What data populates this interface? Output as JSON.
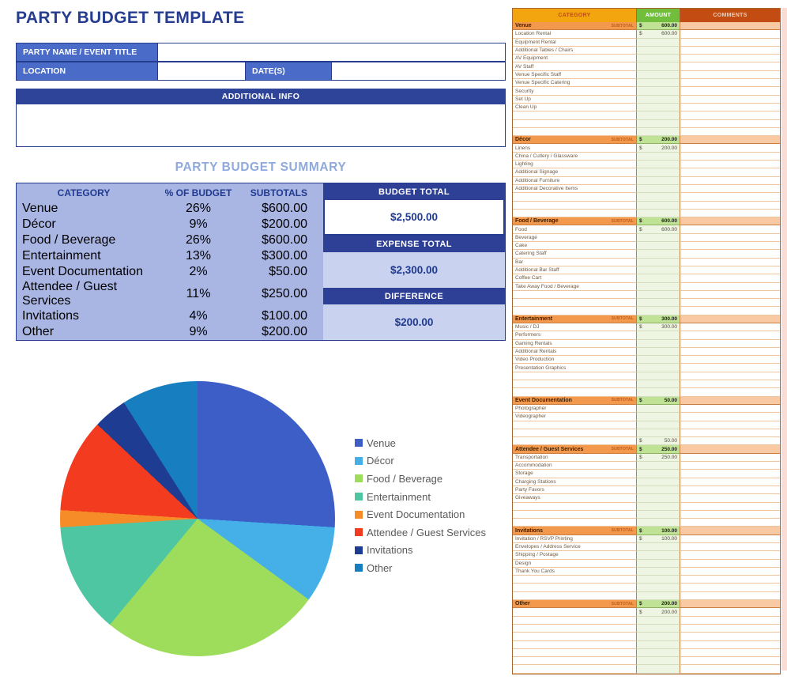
{
  "page": {
    "title": "PARTY BUDGET TEMPLATE"
  },
  "colors": {
    "title_navy": "#263c8f",
    "form_label_blue": "#4a6cc8",
    "info_bar_blue": "#2e4499",
    "summary_title_blue": "#8ea9db",
    "summary_bg": "#a9b5e3",
    "box_header_blue": "#2e3f96",
    "box_light_blue": "#c9d2ef",
    "sheet_category_header": "#f2a50f",
    "sheet_amount_header": "#70be3c",
    "sheet_comments_header": "#c24c12",
    "sheet_section_orange": "#f2994e",
    "sheet_section_amount_green": "#bfe294",
    "sheet_section_comments": "#f8c9a2"
  },
  "form": {
    "fields": [
      {
        "label": "PARTY NAME / EVENT TITLE",
        "value": ""
      },
      {
        "label": "LOCATION",
        "value": ""
      },
      {
        "label": "DATE(S)",
        "value": ""
      }
    ],
    "additional_info": {
      "label": "ADDITIONAL INFO",
      "value": ""
    }
  },
  "summary": {
    "title": "PARTY BUDGET SUMMARY",
    "headers": [
      "CATEGORY",
      "% OF BUDGET",
      "SUBTOTALS"
    ],
    "rows": [
      {
        "category": "Venue",
        "percent": "26%",
        "subtotal": "$600.00"
      },
      {
        "category": "Décor",
        "percent": "9%",
        "subtotal": "$200.00"
      },
      {
        "category": "Food / Beverage",
        "percent": "26%",
        "subtotal": "$600.00"
      },
      {
        "category": "Entertainment",
        "percent": "13%",
        "subtotal": "$300.00"
      },
      {
        "category": "Event Documentation",
        "percent": "2%",
        "subtotal": "$50.00"
      },
      {
        "category": "Attendee / Guest Services",
        "percent": "11%",
        "subtotal": "$250.00"
      },
      {
        "category": "Invitations",
        "percent": "4%",
        "subtotal": "$100.00"
      },
      {
        "category": "Other",
        "percent": "9%",
        "subtotal": "$200.00"
      }
    ],
    "boxes": [
      {
        "label": "BUDGET TOTAL",
        "value": "$2,500.00"
      },
      {
        "label": "EXPENSE TOTAL",
        "value": "$2,300.00"
      },
      {
        "label": "DIFFERENCE",
        "value": "$200.00"
      }
    ]
  },
  "chart_data": {
    "type": "pie",
    "title": "",
    "categories": [
      "Venue",
      "Décor",
      "Food / Beverage",
      "Entertainment",
      "Event Documentation",
      "Attendee / Guest Services",
      "Invitations",
      "Other"
    ],
    "values": [
      26,
      9,
      26,
      13,
      2,
      11,
      4,
      9
    ],
    "unit": "percent of budget",
    "colors": [
      "#3d5ec6",
      "#45b0e8",
      "#9edd5b",
      "#4dc6a1",
      "#f58c28",
      "#f33b20",
      "#1d3c92",
      "#177fc0"
    ],
    "legend_position": "right",
    "start_angle_deg": 0,
    "direction": "clockwise"
  },
  "sheet": {
    "columns": [
      "CATEGORY",
      "AMOUNT",
      "COMMENTS"
    ],
    "subtotal_label": "SUBTOTAL",
    "currency": "$",
    "sections": [
      {
        "name": "Venue",
        "subtotal": "600.00",
        "blank_rows": 3,
        "items": [
          {
            "label": "Location Rental",
            "amount": "600.00"
          },
          {
            "label": "Equipment Rental"
          },
          {
            "label": "Additional Tables / Chairs"
          },
          {
            "label": "AV Equipment"
          },
          {
            "label": "AV Staff"
          },
          {
            "label": "Venue Specific Staff"
          },
          {
            "label": "Venue Specific Catering"
          },
          {
            "label": "Security"
          },
          {
            "label": "Set Up"
          },
          {
            "label": "Clean Up"
          }
        ]
      },
      {
        "name": "Décor",
        "subtotal": "200.00",
        "blank_rows": 3,
        "items": [
          {
            "label": "Linens",
            "amount": "200.00"
          },
          {
            "label": "China / Cutlery / Glassware"
          },
          {
            "label": "Lighting"
          },
          {
            "label": "Additional Signage"
          },
          {
            "label": "Additional Furniture"
          },
          {
            "label": "Additional Decorative Items"
          }
        ]
      },
      {
        "name": "Food / Beverage",
        "subtotal": "600.00",
        "blank_rows": 3,
        "items": [
          {
            "label": "Food",
            "amount": "600.00"
          },
          {
            "label": "Beverage"
          },
          {
            "label": "Cake"
          },
          {
            "label": "Catering Staff"
          },
          {
            "label": "Bar"
          },
          {
            "label": "Additional Bar Staff"
          },
          {
            "label": "Coffee Cart"
          },
          {
            "label": "Take Away Food / Beverage"
          }
        ]
      },
      {
        "name": "Entertainment",
        "subtotal": "300.00",
        "blank_rows": 3,
        "items": [
          {
            "label": "Music / DJ",
            "amount": "300.00"
          },
          {
            "label": "Performers"
          },
          {
            "label": "Gaming Rentals"
          },
          {
            "label": "Additional Rentals"
          },
          {
            "label": "Video Production"
          },
          {
            "label": "Presentation Graphics"
          }
        ]
      },
      {
        "name": "Event Documentation",
        "subtotal": "50.00",
        "blank_rows": 0,
        "items": [
          {
            "label": "Photographer"
          },
          {
            "label": "Videographer"
          },
          {
            "label": ""
          },
          {
            "label": ""
          },
          {
            "label": "",
            "amount": "50.00"
          }
        ]
      },
      {
        "name": "Attendee / Guest Services",
        "subtotal": "250.00",
        "blank_rows": 3,
        "items": [
          {
            "label": "Transportation",
            "amount": "250.00"
          },
          {
            "label": "Accommodation"
          },
          {
            "label": "Storage"
          },
          {
            "label": "Charging Stations"
          },
          {
            "label": "Party Favors"
          },
          {
            "label": "Giveaways"
          }
        ]
      },
      {
        "name": "Invitations",
        "subtotal": "100.00",
        "blank_rows": 3,
        "items": [
          {
            "label": "Invitation / RSVP Printing",
            "amount": "100.00"
          },
          {
            "label": "Envelopes / Address Service"
          },
          {
            "label": "Shipping / Postage"
          },
          {
            "label": "Design"
          },
          {
            "label": "Thank You Cards"
          }
        ]
      },
      {
        "name": "Other",
        "subtotal": "200.00",
        "blank_rows": 7,
        "items": [
          {
            "label": "",
            "amount": "200.00"
          }
        ]
      }
    ]
  }
}
